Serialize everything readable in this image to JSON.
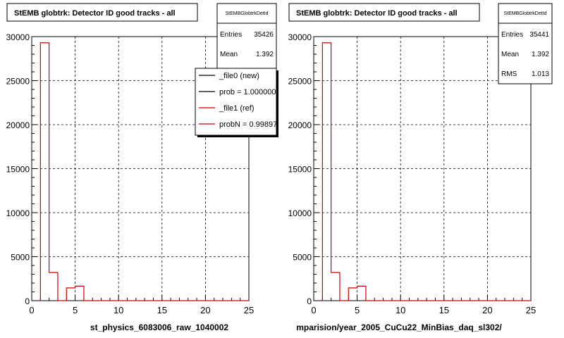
{
  "colors": {
    "ref": "#cc0000",
    "new": "#000000",
    "grid": "#000000",
    "frame": "#000000"
  },
  "footer_text": "",
  "chart_data": [
    {
      "type": "bar",
      "title": "StEMB globtrk: Detector ID good tracks - all",
      "xlabel": "st_physics_6083006_raw_1040002",
      "ylabel": "",
      "xlim": [
        0,
        25
      ],
      "ylim": [
        0,
        30000
      ],
      "x_ticks": [
        "0",
        "5",
        "10",
        "15",
        "20",
        "25"
      ],
      "y_ticks": [
        "0",
        "5000",
        "10000",
        "15000",
        "20000",
        "25000",
        "30000"
      ],
      "grid": true,
      "bin_width": 1,
      "series": [
        {
          "name": "_file1 (ref)",
          "color": "#cc0000",
          "x": [
            1,
            2,
            3,
            4,
            5,
            6,
            7,
            8,
            9,
            10,
            11,
            12,
            13,
            14,
            15,
            16,
            17,
            18,
            19,
            20,
            21,
            22,
            23,
            24
          ],
          "values": [
            29300,
            3200,
            0,
            1450,
            1650,
            0,
            0,
            0,
            0,
            0,
            0,
            0,
            0,
            0,
            0,
            0,
            0,
            0,
            0,
            0,
            0,
            0,
            0,
            0
          ]
        }
      ],
      "stats": {
        "title": "StEMBGlobtrkDetId",
        "rows": [
          {
            "label": "Entries",
            "value": "35426"
          },
          {
            "label": "Mean",
            "value": "1.392"
          }
        ]
      },
      "legend": {
        "position": "top-right",
        "entries": [
          {
            "label": "_file0 (new)",
            "color": "#000000"
          },
          {
            "label": "prob = 1.000000",
            "color": "#000000"
          },
          {
            "label": "_file1 (ref)",
            "color": "#cc0000"
          },
          {
            "label": "probN = 0.99897",
            "color": "#cc0000"
          }
        ]
      }
    },
    {
      "type": "bar",
      "title": "StEMB globtrk: Detector ID good tracks - all",
      "xlabel": "mparision/year_2005_CuCu22_MinBias_daq_sl302/",
      "ylabel": "",
      "xlim": [
        0,
        25
      ],
      "ylim": [
        0,
        30000
      ],
      "x_ticks": [
        "0",
        "5",
        "10",
        "15",
        "20",
        "25"
      ],
      "y_ticks": [
        "0",
        "5000",
        "10000",
        "15000",
        "20000",
        "25000",
        "30000"
      ],
      "grid": true,
      "bin_width": 1,
      "series": [
        {
          "name": "",
          "color": "#cc0000",
          "x": [
            1,
            2,
            3,
            4,
            5,
            6,
            7,
            8,
            9,
            10,
            11,
            12,
            13,
            14,
            15,
            16,
            17,
            18,
            19,
            20,
            21,
            22,
            23,
            24
          ],
          "values": [
            29300,
            3200,
            0,
            1450,
            1650,
            0,
            0,
            0,
            0,
            0,
            0,
            0,
            0,
            0,
            0,
            0,
            0,
            0,
            0,
            0,
            0,
            0,
            0,
            0
          ]
        }
      ],
      "stats": {
        "title": "StEMBGlobtrkDetId",
        "rows": [
          {
            "label": "Entries",
            "value": "35441"
          },
          {
            "label": "Mean",
            "value": "1.392"
          },
          {
            "label": "RMS",
            "value": "1.013"
          }
        ]
      },
      "legend": null
    }
  ]
}
